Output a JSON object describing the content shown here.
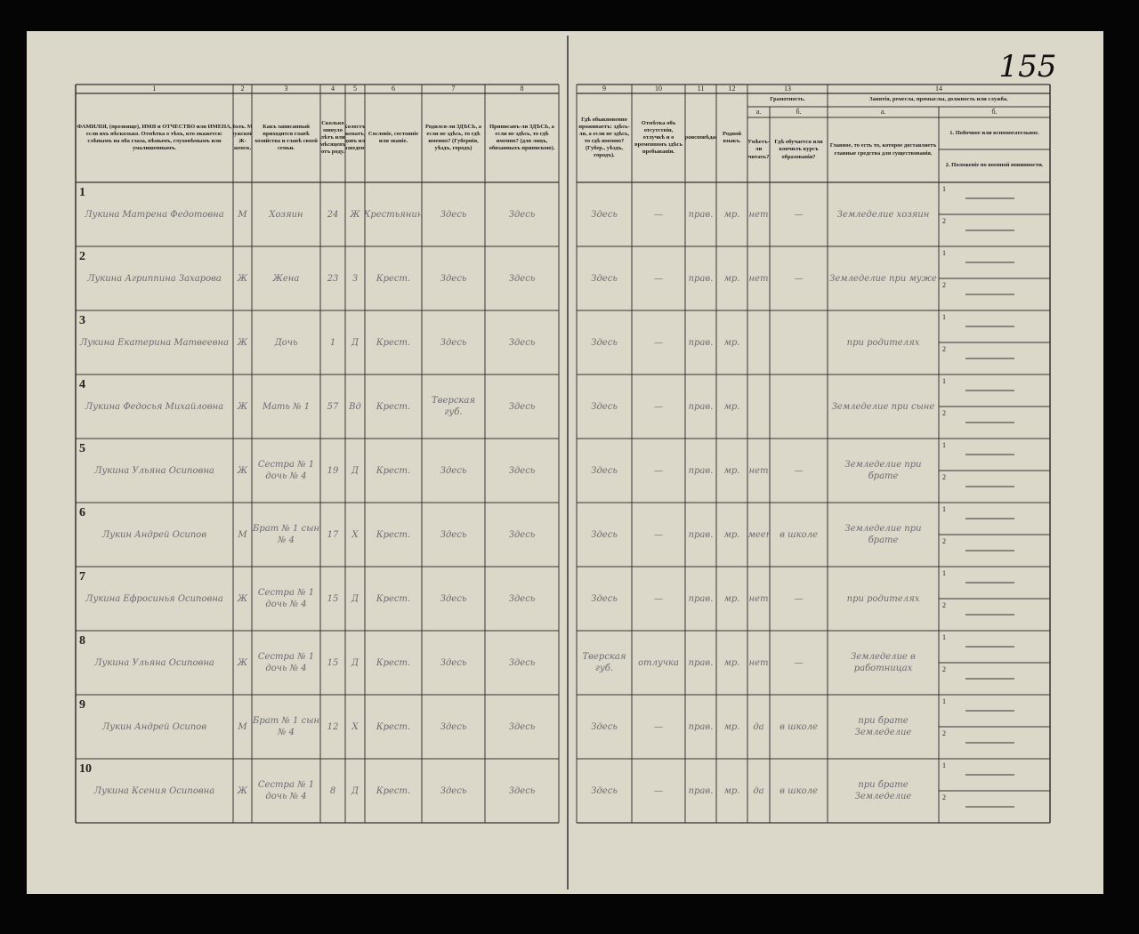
{
  "page_number": "155",
  "column_numbers": [
    "1",
    "2",
    "3",
    "4",
    "5",
    "6",
    "7",
    "8",
    "9",
    "10",
    "11",
    "12",
    "13",
    "14"
  ],
  "headers": [
    "ФАМИЛІЯ, (прозвище), ИМЯ и ОТЧЕСТВО или ИМЕНА, если ихъ нѣсколько. Отмѣтка о тѣхъ, кто окажется: слѣпымъ на оба глаза, нѣмымъ, глухонѣмымъ или умалишеннымъ.",
    "Полъ. М-мужской. Ж-женск.",
    "Какъ записанный приходится главѣ хозяйства и главѣ своей семьи.",
    "Сколько минуло лѣтъ или мѣсяцевъ отъ роду.",
    "Холостъ, женатъ, вдовъ или разведенъ.",
    "Сословіе, состояніе или званіе.",
    "Родился-ли ЗДѢСЬ, а если не здѣсь, то гдѣ именно? (Губернія, уѣздъ, городъ)",
    "Приписанъ-ли ЗДѢСЬ, а если не здѣсь, то гдѣ именно? (для лицъ, обязанныхъ припискою).",
    "Гдѣ обыкновенно проживаетъ: здѣсь-ли, а если не здѣсь, то гдѣ именно? (Губер., уѣздъ, городъ).",
    "Отмѣтка объ отсутствіи, отлучкѣ и о временномъ здѣсь пребываніи.",
    "Вѣроисповѣданіе.",
    "Родной языкъ.",
    "Грамотность.",
    "Занятія, ремесла, промыслы, должность или служба."
  ],
  "subheaders": {
    "letter_a": "а.",
    "letter_b": "б.",
    "literacy_a": "Умѣетъ-ли читать?",
    "literacy_b": "Гдѣ обучается или кончилъ курсъ образованія?",
    "occupation_a": "Главное, то есть то, которое доставляетъ главные средства для существованія.",
    "occupation_b1": "1. Побочное или вспомогательное.",
    "occupation_b2": "2. Положеніе по военной повинности."
  },
  "sub_line_numbers": [
    "1",
    "2"
  ],
  "rows": [
    {
      "number": "1",
      "cells": [
        "Лукина Матрена Федотовна",
        "М",
        "Хозяин",
        "24",
        "Ж",
        "Крестьянин",
        "Здесь",
        "Здесь",
        "Здесь",
        "—",
        "прав.",
        "мр.",
        "нет",
        "—",
        "Земледелие хозяин"
      ]
    },
    {
      "number": "2",
      "cells": [
        "Лукина Агриппина Захарова",
        "Ж",
        "Жена",
        "23",
        "З",
        "Крест.",
        "Здесь",
        "Здесь",
        "Здесь",
        "—",
        "прав.",
        "мр.",
        "нет",
        "—",
        "Земледелие при муже"
      ]
    },
    {
      "number": "3",
      "cells": [
        "Лукина Екатерина Матвеевна",
        "Ж",
        "Дочь",
        "1",
        "Д",
        "Крест.",
        "Здесь",
        "Здесь",
        "Здесь",
        "—",
        "прав.",
        "мр.",
        "",
        "",
        "при родителях"
      ]
    },
    {
      "number": "4",
      "cells": [
        "Лукина Федосья Михайловна",
        "Ж",
        "Мать № 1",
        "57",
        "Вд",
        "Крест.",
        "Тверская губ.",
        "Здесь",
        "Здесь",
        "—",
        "прав.",
        "мр.",
        "",
        "",
        "Земледелие при сыне"
      ]
    },
    {
      "number": "5",
      "cells": [
        "Лукина Ульяна Осиповна",
        "Ж",
        "Сестра № 1 дочь № 4",
        "19",
        "Д",
        "Крест.",
        "Здесь",
        "Здесь",
        "Здесь",
        "—",
        "прав.",
        "мр.",
        "нет",
        "—",
        "Земледелие при брате"
      ]
    },
    {
      "number": "6",
      "cells": [
        "Лукин Андрей Осипов",
        "М",
        "Брат № 1 сын № 4",
        "17",
        "Х",
        "Крест.",
        "Здесь",
        "Здесь",
        "Здесь",
        "—",
        "прав.",
        "мр.",
        "умеет",
        "в школе",
        "Земледелие при брате"
      ]
    },
    {
      "number": "7",
      "cells": [
        "Лукина Ефросинья Осиповна",
        "Ж",
        "Сестра № 1 дочь № 4",
        "15",
        "Д",
        "Крест.",
        "Здесь",
        "Здесь",
        "Здесь",
        "—",
        "прав.",
        "мр.",
        "нет",
        "—",
        "при родителях"
      ]
    },
    {
      "number": "8",
      "cells": [
        "Лукина Ульяна Осиповна",
        "Ж",
        "Сестра № 1 дочь № 4",
        "15",
        "Д",
        "Крест.",
        "Здесь",
        "Здесь",
        "Тверская губ.",
        "отлучка",
        "прав.",
        "мр.",
        "нет",
        "—",
        "Земледелие в работницах"
      ]
    },
    {
      "number": "9",
      "cells": [
        "Лукин Андрей Осипов",
        "М",
        "Брат № 1 сын № 4",
        "12",
        "Х",
        "Крест.",
        "Здесь",
        "Здесь",
        "Здесь",
        "—",
        "прав.",
        "мр.",
        "да",
        "в школе",
        "при брате Земледелие"
      ]
    },
    {
      "number": "10",
      "cells": [
        "Лукина Ксения Осиповна",
        "Ж",
        "Сестра № 1 дочь № 4",
        "8",
        "Д",
        "Крест.",
        "Здесь",
        "Здесь",
        "Здесь",
        "—",
        "прав.",
        "мр.",
        "да",
        "в школе",
        "при брате Земледелие"
      ]
    }
  ]
}
